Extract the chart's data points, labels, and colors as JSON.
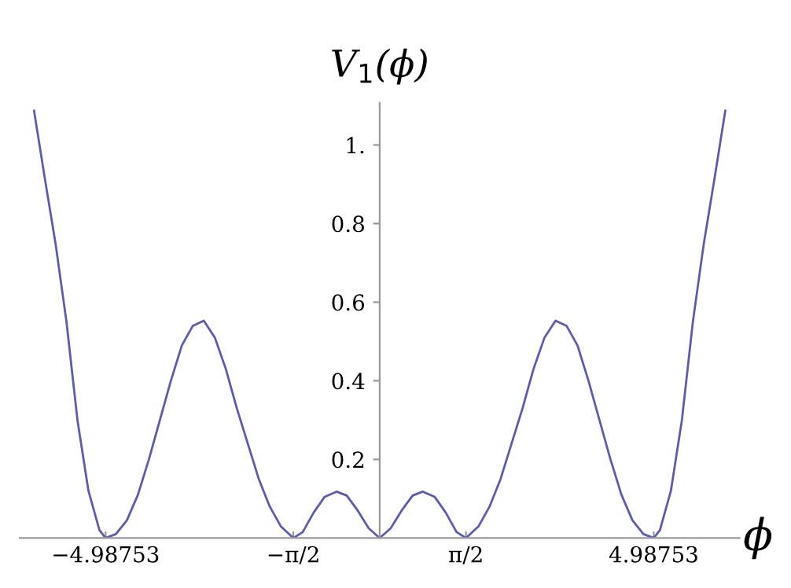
{
  "chart_data": {
    "type": "line",
    "title": "V$_{1}$(ϕ)",
    "xlabel": "ϕ",
    "x": [
      -6.29,
      -6.1,
      -5.9,
      -5.7,
      -5.5,
      -5.3,
      -5.1,
      -4.98753,
      -4.8,
      -4.6,
      -4.4,
      -4.2,
      -4.0,
      -3.8,
      -3.6,
      -3.4,
      -3.2,
      -3.0,
      -2.8,
      -2.6,
      -2.4,
      -2.2,
      -2.0,
      -1.8,
      -1.5708,
      -1.4,
      -1.2,
      -1.0,
      -0.785,
      -0.6,
      -0.4,
      -0.2,
      0,
      0.2,
      0.4,
      0.6,
      0.785,
      1.0,
      1.2,
      1.4,
      1.5708,
      1.8,
      2.0,
      2.2,
      2.4,
      2.6,
      2.8,
      3.0,
      3.2,
      3.4,
      3.6,
      3.8,
      4.0,
      4.2,
      4.4,
      4.6,
      4.8,
      4.98753,
      5.1,
      5.3,
      5.5,
      5.7,
      5.9,
      6.1,
      6.29
    ],
    "series": [
      {
        "color": "#5b5bb0",
        "values": [
          1.087,
          0.92,
          0.75,
          0.55,
          0.3,
          0.12,
          0.02,
          0,
          0.01,
          0.045,
          0.11,
          0.2,
          0.3,
          0.4,
          0.49,
          0.54,
          0.553,
          0.51,
          0.43,
          0.33,
          0.24,
          0.15,
          0.08,
          0.03,
          0,
          0.015,
          0.065,
          0.105,
          0.118,
          0.108,
          0.07,
          0.025,
          0,
          0.025,
          0.07,
          0.108,
          0.118,
          0.105,
          0.065,
          0.015,
          0,
          0.03,
          0.08,
          0.15,
          0.24,
          0.33,
          0.43,
          0.51,
          0.553,
          0.54,
          0.49,
          0.4,
          0.3,
          0.2,
          0.11,
          0.045,
          0.01,
          0,
          0.02,
          0.12,
          0.3,
          0.55,
          0.75,
          0.92,
          1.087
        ]
      }
    ],
    "xlim": [
      -6.55,
      6.55
    ],
    "ylim": [
      0,
      1.107
    ],
    "xticks": [
      {
        "value": -4.98753,
        "label": "−4.98753"
      },
      {
        "value": -1.5708,
        "label": "−π/2"
      },
      {
        "value": 1.5708,
        "label": "π/2"
      },
      {
        "value": 4.98753,
        "label": "4.98753"
      }
    ],
    "yticks": [
      0.2,
      0.4,
      0.6,
      0.8,
      {
        "value": 1,
        "label": "1."
      }
    ],
    "grid": false,
    "legend": false,
    "marker": "none",
    "line_style": "solid"
  }
}
